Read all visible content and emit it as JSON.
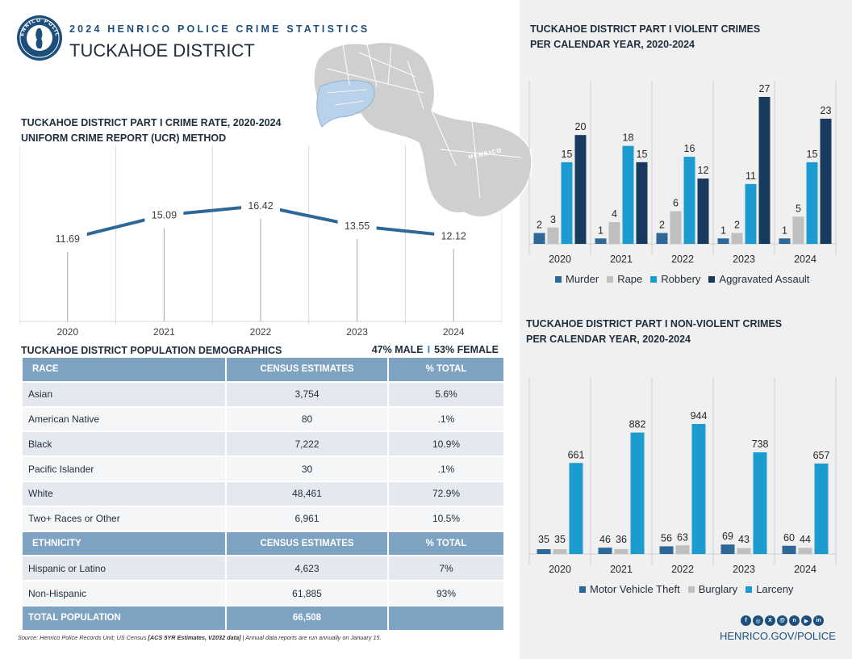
{
  "header": {
    "kicker": "2024 HENRICO POLICE CRIME STATISTICS",
    "district": "TUCKAHOE DISTRICT",
    "seal_text": "HENRICO POLICE",
    "map_label": "HENRICO"
  },
  "colors": {
    "navy": "#173a5e",
    "steel": "#2d6898",
    "gray": "#bfbfbf",
    "cyan": "#1c9bd1",
    "table_header": "#7ea2c2",
    "line": "#2d6898"
  },
  "rate_chart": {
    "title_line1": "TUCKAHOE DISTRICT PART I CRIME RATE, 2020-2024",
    "title_line2": "UNIFORM CRIME REPORT (UCR) METHOD"
  },
  "demographics": {
    "title": "TUCKAHOE DISTRICT POPULATION DEMOGRAPHICS",
    "male": "47% MALE",
    "separator": "I",
    "female": "53% FEMALE",
    "race_header": {
      "label": "RACE",
      "estimates": "CENSUS ESTIMATES",
      "total": "% TOTAL"
    },
    "race_rows": [
      {
        "label": "Asian",
        "estimates": "3,754",
        "total": "5.6%"
      },
      {
        "label": "American Native",
        "estimates": "80",
        "total": ".1%"
      },
      {
        "label": "Black",
        "estimates": "7,222",
        "total": "10.9%"
      },
      {
        "label": "Pacific Islander",
        "estimates": "30",
        "total": ".1%"
      },
      {
        "label": "White",
        "estimates": "48,461",
        "total": "72.9%"
      },
      {
        "label": "Two+ Races or Other",
        "estimates": "6,961",
        "total": "10.5%"
      }
    ],
    "ethnicity_header": {
      "label": "ETHNICITY",
      "estimates": "CENSUS ESTIMATES",
      "total": "% TOTAL"
    },
    "ethnicity_rows": [
      {
        "label": "Hispanic or Latino",
        "estimates": "4,623",
        "total": "7%"
      },
      {
        "label": "Non-Hispanic",
        "estimates": "61,885",
        "total": "93%"
      }
    ],
    "total_row": {
      "label": "TOTAL POPULATION",
      "estimates": "66,508",
      "total": ""
    }
  },
  "source": {
    "prefix": "Source: Henrico Police Records Unit; US Census ",
    "bracket": "[ACS 5YR Estimates, V2032 data]",
    "suffix": " | Annual data reports are run annually on January 15."
  },
  "violent": {
    "title_line1": "TUCKAHOE DISTRICT PART I VIOLENT CRIMES",
    "title_line2": "PER CALENDAR YEAR, 2020-2024"
  },
  "nonviolent": {
    "title_line1": "TUCKAHOE DISTRICT PART I NON-VIOLENT CRIMES",
    "title_line2": "PER CALENDAR YEAR, 2020-2024"
  },
  "footer": {
    "website": "HENRICO.GOV/POLICE",
    "social_icons": [
      "facebook-icon",
      "instagram-icon",
      "x-icon",
      "threads-icon",
      "nextdoor-icon",
      "youtube-icon",
      "linkedin-icon"
    ],
    "social_glyphs": [
      "f",
      "◎",
      "X",
      "@",
      "n",
      "▶",
      "in"
    ]
  },
  "chart_data": [
    {
      "type": "line",
      "title": "TUCKAHOE DISTRICT PART I CRIME RATE, 2020-2024",
      "subtitle": "UNIFORM CRIME REPORT (UCR) METHOD",
      "categories": [
        "2020",
        "2021",
        "2022",
        "2023",
        "2024"
      ],
      "values": [
        11.69,
        15.09,
        16.42,
        13.55,
        12.12
      ],
      "value_labels": [
        "11.69",
        "15.09",
        "16.42",
        "13.55",
        "12.12"
      ],
      "ylim": [
        0,
        25
      ]
    },
    {
      "type": "bar",
      "title": "TUCKAHOE DISTRICT PART I VIOLENT CRIMES PER CALENDAR YEAR, 2020-2024",
      "categories": [
        "2020",
        "2021",
        "2022",
        "2023",
        "2024"
      ],
      "series": [
        {
          "name": "Murder",
          "color": "#2d6898",
          "values": [
            2,
            1,
            2,
            1,
            1
          ]
        },
        {
          "name": "Rape",
          "color": "#bfbfbf",
          "values": [
            3,
            4,
            6,
            2,
            5
          ]
        },
        {
          "name": "Robbery",
          "color": "#1c9bd1",
          "values": [
            15,
            18,
            16,
            11,
            15
          ]
        },
        {
          "name": "Aggravated Assault",
          "color": "#173a5e",
          "values": [
            20,
            15,
            12,
            27,
            23
          ]
        }
      ],
      "ylim": [
        0,
        27
      ],
      "legend": "bottom"
    },
    {
      "type": "bar",
      "title": "TUCKAHOE DISTRICT PART I NON-VIOLENT CRIMES PER CALENDAR YEAR, 2020-2024",
      "categories": [
        "2020",
        "2021",
        "2022",
        "2023",
        "2024"
      ],
      "series": [
        {
          "name": "Motor Vehicle Theft",
          "color": "#2d6898",
          "values": [
            35,
            46,
            56,
            69,
            60
          ]
        },
        {
          "name": "Burglary",
          "color": "#bfbfbf",
          "values": [
            35,
            36,
            63,
            43,
            44
          ]
        },
        {
          "name": "Larceny",
          "color": "#1c9bd1",
          "values": [
            661,
            882,
            944,
            738,
            657
          ]
        }
      ],
      "ylim": [
        0,
        944
      ],
      "legend": "bottom"
    }
  ]
}
